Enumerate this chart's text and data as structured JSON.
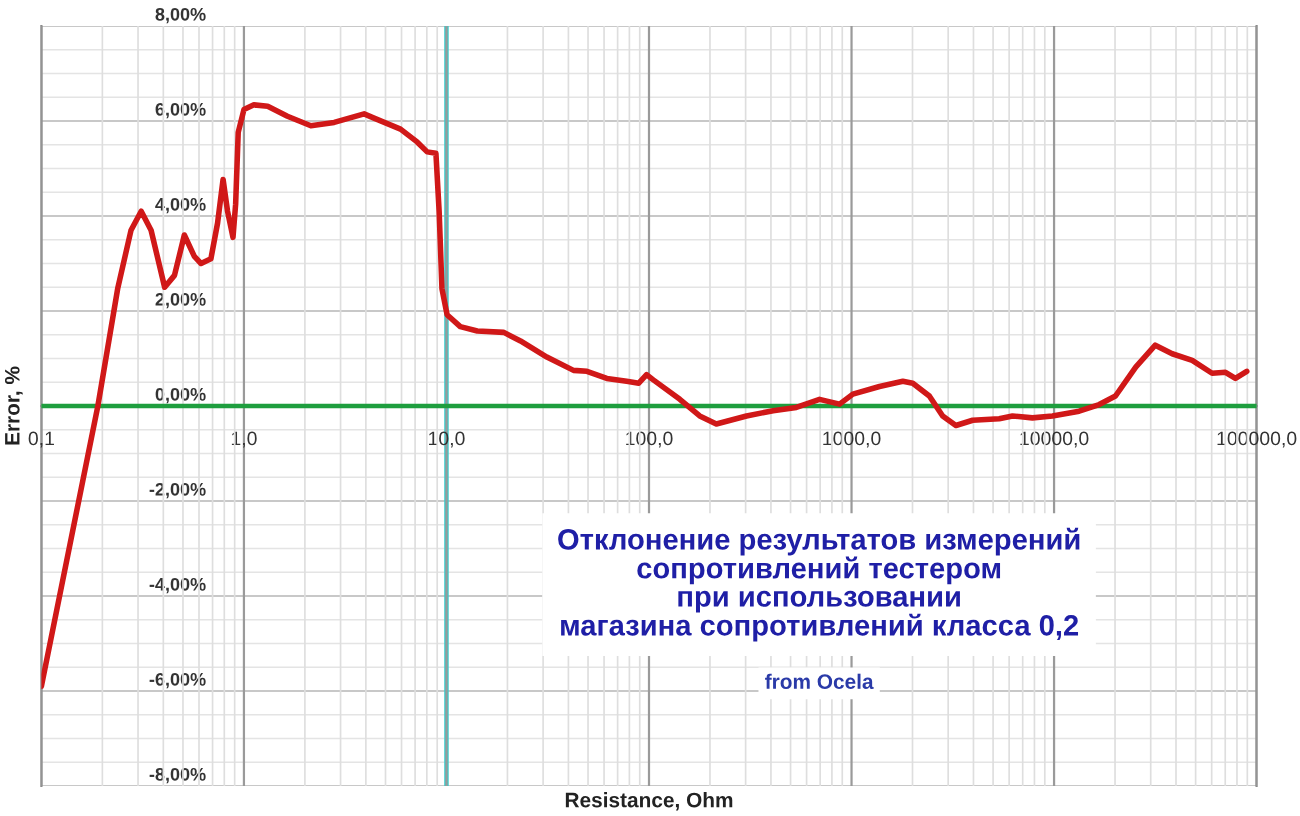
{
  "chart_data": {
    "type": "line",
    "title": "Отклонение результатов измерений\nсопротивлений тестером\nпри использовании\nмагазина сопротивлений класса 0,2",
    "annotations": [
      "from Ocela"
    ],
    "xlabel": "Resistance, Ohm",
    "ylabel": "Error, %",
    "log": "x",
    "xlim": [
      0.1,
      100000
    ],
    "ylim": [
      -8,
      8
    ],
    "xticks": [
      {
        "value": 0.1,
        "label": "0,1"
      },
      {
        "value": 1,
        "label": "1,0"
      },
      {
        "value": 10,
        "label": "10,0"
      },
      {
        "value": 100,
        "label": "100,0"
      },
      {
        "value": 1000,
        "label": "1000,0"
      },
      {
        "value": 10000,
        "label": "10000,0"
      },
      {
        "value": 100000,
        "label": "100000,0"
      }
    ],
    "yticks": [
      {
        "value": -8,
        "label": "-8,00%"
      },
      {
        "value": -6,
        "label": "-6,00%"
      },
      {
        "value": -4,
        "label": "-4,00%"
      },
      {
        "value": -2,
        "label": "-2,00%"
      },
      {
        "value": 0,
        "label": "0,00%"
      },
      {
        "value": 2,
        "label": "2,00%"
      },
      {
        "value": 4,
        "label": "4,00%"
      },
      {
        "value": 6,
        "label": "6,00%"
      },
      {
        "value": 8,
        "label": "8,00%"
      }
    ],
    "grid": true,
    "ref_lines": [
      {
        "axis": "y",
        "value": 0,
        "color": "#1e9e3e"
      },
      {
        "axis": "x",
        "value": 10,
        "color": "#33cccc"
      }
    ],
    "series": [
      {
        "color": "#d01818",
        "x": [
          0.1,
          0.19,
          0.238,
          0.277,
          0.311,
          0.348,
          0.406,
          0.454,
          0.508,
          0.569,
          0.614,
          0.687,
          0.741,
          0.789,
          0.83,
          0.883,
          0.91,
          0.937,
          1.0,
          1.12,
          1.31,
          1.64,
          2.14,
          2.79,
          3.92,
          4.39,
          5.93,
          7.16,
          8.03,
          8.87,
          9.2,
          9.5,
          10.07,
          11.7,
          14.2,
          19.2,
          23.2,
          31.3,
          42.4,
          49.4,
          61.9,
          77.6,
          89,
          97.3,
          105,
          142,
          178,
          215,
          303,
          410,
          534,
          695,
          873,
          1015,
          1374,
          1792,
          2006,
          2422,
          2818,
          3275,
          3963,
          5360,
          6237,
          7820,
          9812,
          13300,
          16700,
          20100,
          25300,
          31600,
          38300,
          48100,
          60300,
          70200,
          78600,
          89400
        ],
        "values": [
          -5.9,
          0.0,
          2.47,
          3.7,
          4.1,
          3.7,
          2.5,
          2.75,
          3.6,
          3.15,
          3.0,
          3.1,
          3.85,
          4.77,
          4.1,
          3.55,
          4.25,
          5.76,
          6.24,
          6.34,
          6.31,
          6.1,
          5.9,
          5.97,
          6.15,
          6.06,
          5.83,
          5.56,
          5.35,
          5.32,
          4.1,
          2.47,
          1.92,
          1.67,
          1.58,
          1.55,
          1.37,
          1.03,
          0.75,
          0.73,
          0.58,
          0.52,
          0.48,
          0.66,
          0.55,
          0.14,
          -0.21,
          -0.38,
          -0.21,
          -0.1,
          -0.03,
          0.14,
          0.04,
          0.25,
          0.41,
          0.52,
          0.48,
          0.21,
          -0.21,
          -0.41,
          -0.3,
          -0.27,
          -0.21,
          -0.25,
          -0.21,
          -0.11,
          0.03,
          0.21,
          0.82,
          1.28,
          1.1,
          0.96,
          0.69,
          0.71,
          0.58,
          0.73
        ]
      }
    ]
  }
}
